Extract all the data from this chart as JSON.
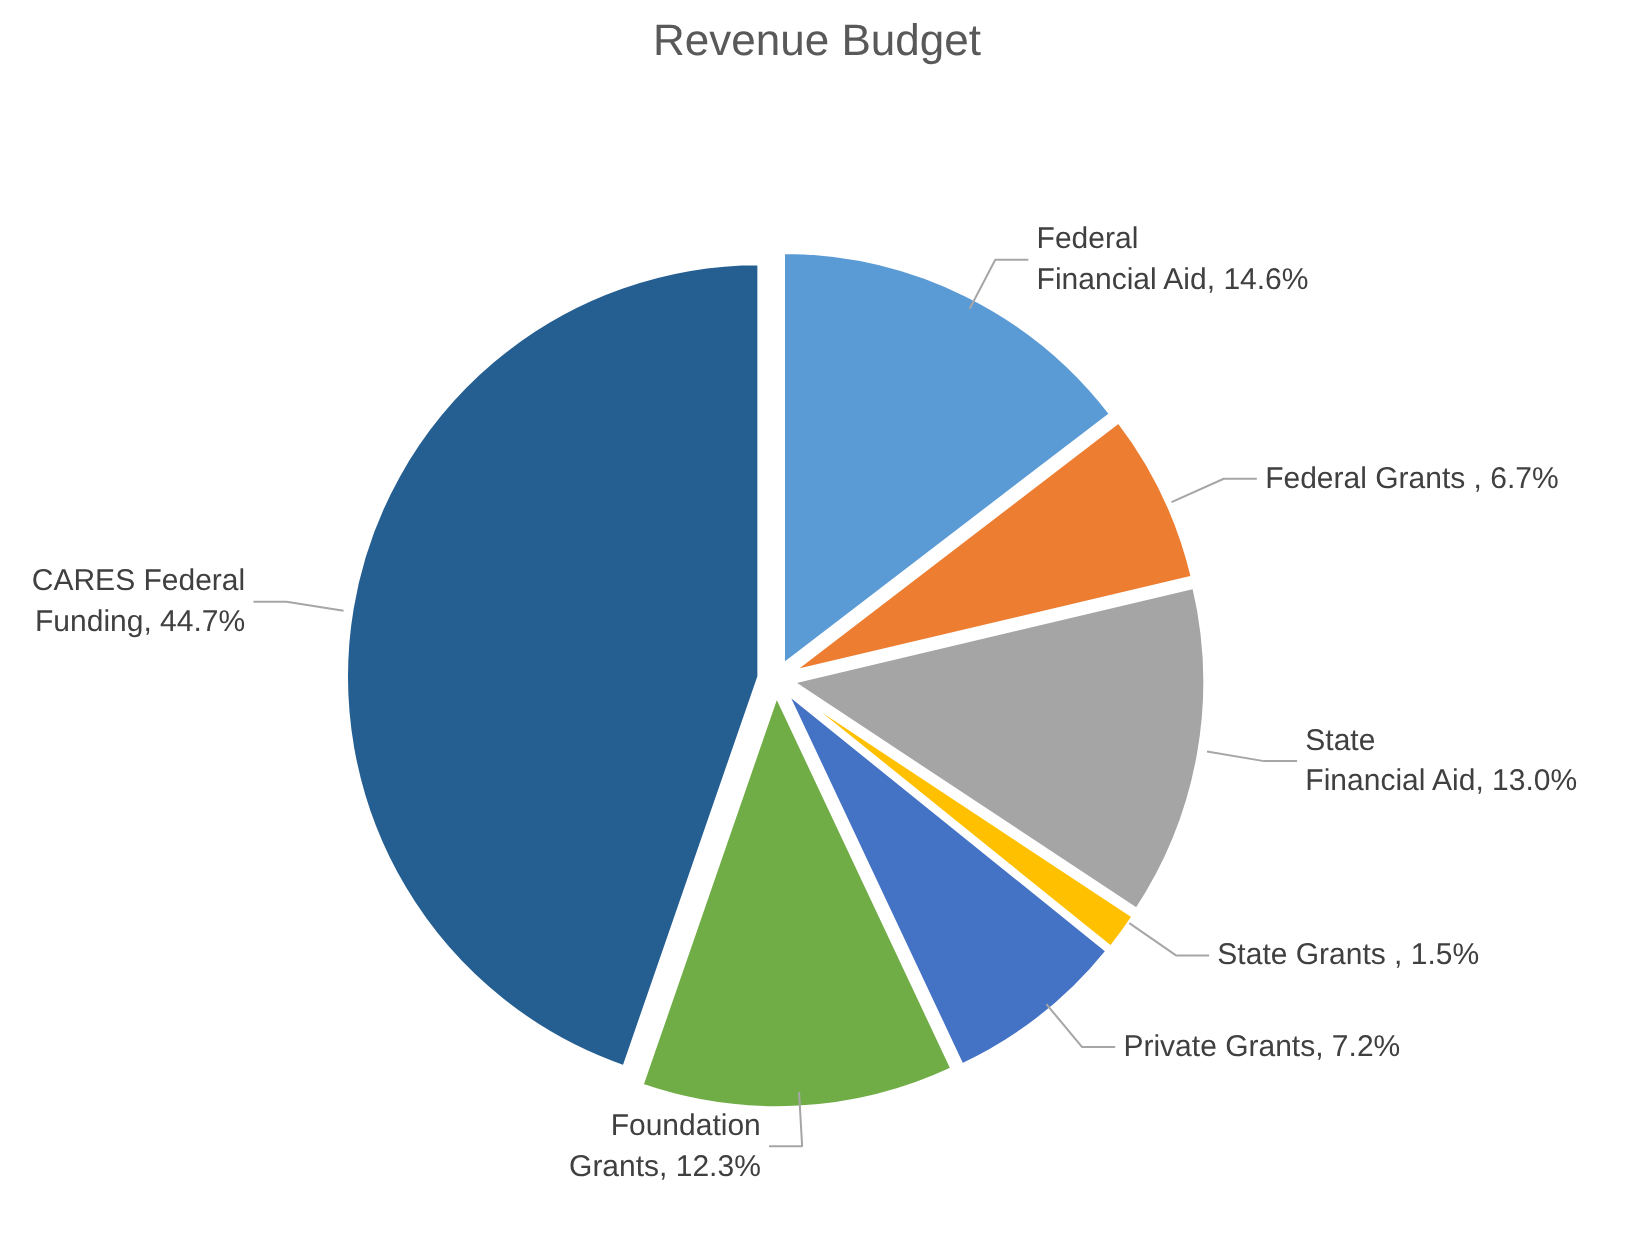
{
  "chart_data": {
    "type": "pie",
    "title": "Revenue Budget",
    "categories": [
      "Federal Financial Aid",
      "Federal Grants ",
      "State Financial Aid",
      "State Grants ",
      "Private Grants",
      "Foundation Grants",
      "CARES Federal Funding"
    ],
    "values": [
      14.6,
      6.7,
      13.0,
      1.5,
      7.2,
      12.3,
      44.7
    ],
    "value_labels": [
      "14.6%",
      "6.7%",
      "13.0%",
      "1.5%",
      "7.2%",
      "12.3%",
      "44.7%"
    ],
    "colors": [
      "#5b9bd5",
      "#ed7d31",
      "#a5a5a5",
      "#ffc000",
      "#4472c4",
      "#70ad47",
      "#255e91"
    ]
  }
}
